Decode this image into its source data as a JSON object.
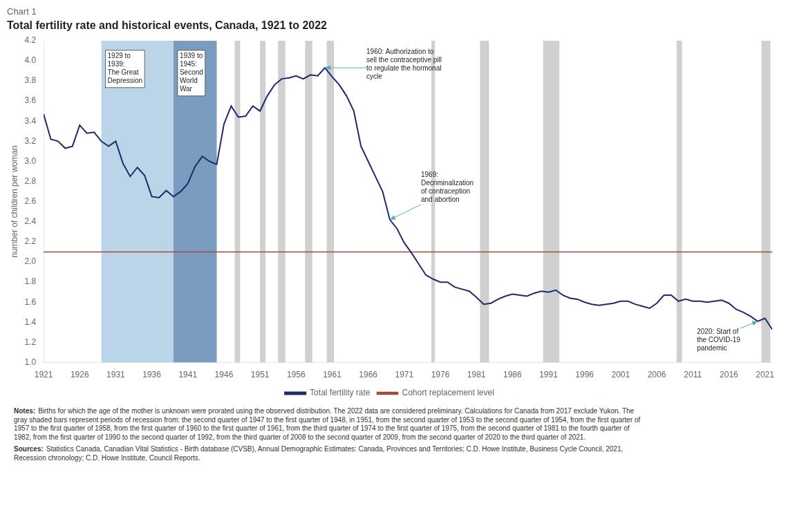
{
  "chart_data": {
    "type": "line",
    "title": "Chart 1",
    "subtitle": "Total fertility rate and historical events, Canada, 1921 to 2022",
    "ylabel": "number of children per woman",
    "xlim": [
      1921,
      2022
    ],
    "xticks": [
      1921,
      1926,
      1931,
      1936,
      1941,
      1946,
      1951,
      1956,
      1961,
      1966,
      1971,
      1976,
      1981,
      1986,
      1991,
      1996,
      2001,
      2006,
      2011,
      2016,
      2021
    ],
    "ylim": [
      1.0,
      4.2
    ],
    "yticks": [
      {
        "value": 1.0,
        "label": "1.0"
      },
      1.2,
      1.4,
      1.6,
      1.8,
      {
        "value": 2.0,
        "label": "2.0"
      },
      2.2,
      2.4,
      2.6,
      2.8,
      {
        "value": 3.0,
        "label": "3.0"
      },
      3.2,
      3.4,
      3.6,
      3.8,
      {
        "value": 4.0,
        "label": "4.0"
      },
      4.2
    ],
    "grid": false,
    "legend": "bottom",
    "x": [
      1921,
      1922,
      1923,
      1924,
      1925,
      1926,
      1927,
      1928,
      1929,
      1930,
      1931,
      1932,
      1933,
      1934,
      1935,
      1936,
      1937,
      1938,
      1939,
      1940,
      1941,
      1942,
      1943,
      1944,
      1945,
      1946,
      1947,
      1948,
      1949,
      1950,
      1951,
      1952,
      1953,
      1954,
      1955,
      1956,
      1957,
      1958,
      1959,
      1960,
      1961,
      1962,
      1963,
      1964,
      1965,
      1966,
      1967,
      1968,
      1969,
      1970,
      1971,
      1972,
      1973,
      1974,
      1975,
      1976,
      1977,
      1978,
      1979,
      1980,
      1981,
      1982,
      1983,
      1984,
      1985,
      1986,
      1987,
      1988,
      1989,
      1990,
      1991,
      1992,
      1993,
      1994,
      1995,
      1996,
      1997,
      1998,
      1999,
      2000,
      2001,
      2002,
      2003,
      2004,
      2005,
      2006,
      2007,
      2008,
      2009,
      2010,
      2011,
      2012,
      2013,
      2014,
      2015,
      2016,
      2017,
      2018,
      2019,
      2020,
      2021,
      2022
    ],
    "series": [
      {
        "name": "Total fertility rate",
        "color": "#1f2a6b",
        "values": [
          3.47,
          3.22,
          3.2,
          3.13,
          3.15,
          3.36,
          3.28,
          3.29,
          3.2,
          3.15,
          3.2,
          2.98,
          2.85,
          2.94,
          2.86,
          2.65,
          2.64,
          2.71,
          2.65,
          2.7,
          2.78,
          2.95,
          3.05,
          3.0,
          2.97,
          3.37,
          3.55,
          3.44,
          3.45,
          3.55,
          3.5,
          3.65,
          3.76,
          3.82,
          3.83,
          3.85,
          3.82,
          3.86,
          3.85,
          3.93,
          3.84,
          3.76,
          3.65,
          3.5,
          3.15,
          3.0,
          2.85,
          2.7,
          2.42,
          2.33,
          2.19,
          2.09,
          1.98,
          1.87,
          1.83,
          1.8,
          1.8,
          1.75,
          1.73,
          1.71,
          1.65,
          1.58,
          1.59,
          1.63,
          1.66,
          1.68,
          1.67,
          1.66,
          1.69,
          1.71,
          1.7,
          1.72,
          1.67,
          1.64,
          1.63,
          1.6,
          1.58,
          1.57,
          1.58,
          1.59,
          1.61,
          1.61,
          1.58,
          1.56,
          1.54,
          1.59,
          1.67,
          1.67,
          1.61,
          1.63,
          1.61,
          1.61,
          1.6,
          1.61,
          1.62,
          1.59,
          1.53,
          1.5,
          1.46,
          1.41,
          1.44,
          1.33
        ]
      }
    ],
    "hlines": [
      {
        "name": "Cohort replacement level",
        "y": 2.1,
        "color": "#9e4a3a"
      }
    ],
    "bands": [
      {
        "x0": 1929,
        "x1": 1939,
        "color": "#bad4e8",
        "label": "1929 to\n1939:\nThe Great\nDepression"
      },
      {
        "x0": 1939,
        "x1": 1945,
        "color": "#7a9cbf",
        "label": "1939 to\n1945:\nSecond\nWorld\nWar"
      },
      {
        "x0": 1947.5,
        "x1": 1948.25,
        "color": "#d0d0d0"
      },
      {
        "x0": 1951.0,
        "x1": 1951.75,
        "color": "#d0d0d0"
      },
      {
        "x0": 1953.5,
        "x1": 1954.5,
        "color": "#d0d0d0"
      },
      {
        "x0": 1957.25,
        "x1": 1958.25,
        "color": "#d0d0d0"
      },
      {
        "x0": 1960.25,
        "x1": 1961.25,
        "color": "#d0d0d0"
      },
      {
        "x0": 1974.75,
        "x1": 1975.25,
        "color": "#d0d0d0"
      },
      {
        "x0": 1981.5,
        "x1": 1982.75,
        "color": "#d0d0d0"
      },
      {
        "x0": 1990.25,
        "x1": 1992.5,
        "color": "#d0d0d0"
      },
      {
        "x0": 2008.75,
        "x1": 2009.5,
        "color": "#d0d0d0"
      },
      {
        "x0": 2020.5,
        "x1": 2021.75,
        "color": "#d0d0d0"
      }
    ],
    "annotations": [
      {
        "x": 1960,
        "y": 3.93,
        "text": "1960: Authorization to\nsell the contraceptive pill\nto regulate the hormonal\ncycle",
        "color": "#5baabf"
      },
      {
        "x": 1969,
        "y": 2.42,
        "text": "1969:\nDecriminalization\nof contraception\nand abortion",
        "color": "#5baabf"
      },
      {
        "x": 2020,
        "y": 1.41,
        "text": "2020: Start of\nthe COVID-19\npandemic",
        "color": "#5baabf"
      }
    ],
    "notes": {
      "label": "Notes:",
      "lines": [
        "Births for which the age of the mother is unknown were prorated using the observed distribution. The 2022 data are considered preliminary. Calculations for Canada from 2017 exclude Yukon. The",
        "gray shaded bars represent periods of recession from: the second quarter of 1947 to the first quarter of 1948, in 1951, from the second quarter of 1953 to the second quarter of 1954, from the first quarter of",
        "1957 to the first quarter of 1958, from the first quarter of 1960 to the first quarter of 1961, from the third quarter of 1974 to the first quarter of 1975, from the second quarter of 1981 to the fourth quarter of",
        "1982, from the first quarter of 1990 to the second quarter of 1992, from the third quarter of 2008 to the second quarter of 2009, from the second quarter of 2020 to the third quarter of 2021."
      ]
    },
    "sources": {
      "label": "Sources:",
      "lines": [
        "Statistics Canada, Canadian Vital Statistics - Birth database (CVSB), Annual Demographic Estimates: Canada, Provinces and Territories; C.D. Howe Institute, Business Cycle Council, 2021,",
        "Recession chronology; C.D. Howe Institute, Council Reports."
      ]
    }
  }
}
